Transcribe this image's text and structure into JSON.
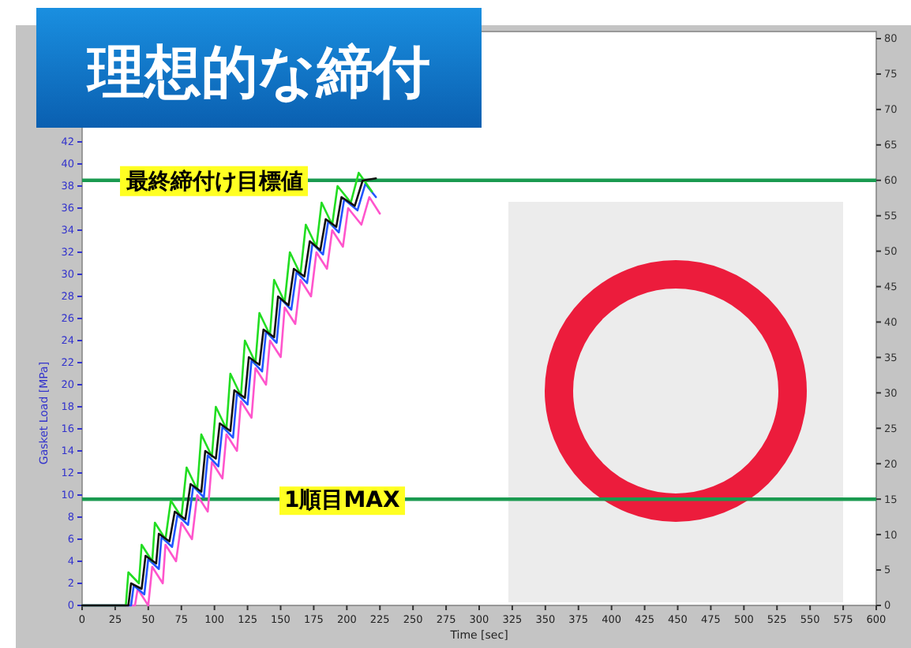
{
  "chart_data": {
    "type": "line",
    "title": "理想的な締付",
    "xlabel": "Time [sec]",
    "ylabel": "Gasket Load [MPa]",
    "xlim": [
      0,
      600
    ],
    "xticks": [
      0,
      25,
      50,
      75,
      100,
      125,
      150,
      175,
      200,
      225,
      250,
      275,
      300,
      325,
      350,
      375,
      400,
      425,
      450,
      475,
      500,
      525,
      550,
      575,
      600
    ],
    "ylim": [
      0,
      52
    ],
    "yticks": [
      0,
      2,
      4,
      6,
      8,
      10,
      12,
      14,
      16,
      18,
      20,
      22,
      24,
      26,
      28,
      30,
      32,
      34,
      36,
      38,
      40,
      42
    ],
    "y2lim": [
      0,
      81
    ],
    "y2ticks": [
      0,
      5,
      10,
      15,
      20,
      25,
      30,
      35,
      40,
      45,
      50,
      55,
      60,
      65,
      70,
      75,
      80
    ],
    "line_style": "solid",
    "ref_lines": [
      {
        "axis": "y2",
        "value": 60,
        "label": "最終締付け目標値",
        "color": "#1a9a50"
      },
      {
        "axis": "y2",
        "value": 15,
        "label": "1順目MAX",
        "color": "#1a9a50"
      }
    ],
    "series": [
      {
        "color": "#ff55cc",
        "x": [
          0,
          40,
          42,
          50,
          53,
          61,
          63,
          71,
          75,
          83,
          87,
          95,
          98,
          106,
          109,
          117,
          120,
          128,
          131,
          139,
          142,
          150,
          153,
          161,
          165,
          173,
          177,
          185,
          189,
          197,
          201,
          211,
          217,
          225
        ],
        "values": [
          0,
          0,
          1.5,
          0,
          3.5,
          2,
          5.5,
          4,
          7.5,
          6,
          10,
          8.5,
          13,
          11.5,
          15.5,
          14,
          18.5,
          17,
          21.5,
          20,
          24,
          22.5,
          27,
          25.5,
          29.5,
          28,
          32,
          30.5,
          34,
          32.5,
          36,
          34.5,
          37,
          35.5
        ]
      },
      {
        "color": "#2255ff",
        "x": [
          0,
          37,
          39,
          47,
          50,
          58,
          60,
          68,
          72,
          80,
          84,
          92,
          95,
          103,
          106,
          114,
          117,
          125,
          128,
          136,
          139,
          147,
          150,
          158,
          162,
          170,
          174,
          182,
          186,
          194,
          198,
          208,
          214,
          222
        ],
        "values": [
          0,
          0,
          1.8,
          1,
          4.2,
          3.3,
          6.2,
          5.3,
          8.2,
          7.3,
          10.8,
          9.8,
          13.6,
          12.6,
          16.2,
          15.2,
          19.2,
          18.2,
          22.2,
          21.2,
          24.8,
          23.8,
          27.8,
          26.8,
          30.2,
          29.2,
          32.8,
          31.8,
          34.8,
          33.8,
          36.8,
          35.8,
          38.2,
          37
        ]
      },
      {
        "color": "#22dd22",
        "x": [
          0,
          33,
          35,
          43,
          45,
          53,
          55,
          63,
          67,
          75,
          79,
          87,
          90,
          98,
          101,
          109,
          112,
          120,
          123,
          131,
          134,
          142,
          145,
          153,
          157,
          165,
          169,
          177,
          181,
          189,
          193,
          203,
          209,
          219
        ],
        "values": [
          0,
          0,
          3,
          2,
          5.5,
          4,
          7.5,
          6,
          9.5,
          8,
          12.5,
          10.5,
          15.5,
          13.5,
          18,
          16,
          21,
          19,
          24,
          22,
          26.5,
          24.5,
          29.5,
          27.5,
          32,
          30,
          34.5,
          32.5,
          36.5,
          34.5,
          38,
          36.5,
          39.2,
          37.5
        ]
      },
      {
        "color": "#111111",
        "x": [
          0,
          35,
          37,
          45,
          48,
          56,
          58,
          66,
          70,
          78,
          82,
          90,
          93,
          101,
          104,
          112,
          115,
          123,
          126,
          134,
          137,
          145,
          148,
          156,
          160,
          168,
          172,
          180,
          184,
          192,
          196,
          206,
          212,
          222
        ],
        "values": [
          0,
          0,
          2,
          1.5,
          4.5,
          3.8,
          6.5,
          5.8,
          8.5,
          7.8,
          11,
          10.3,
          14,
          13.3,
          16.5,
          15.8,
          19.5,
          18.8,
          22.5,
          21.8,
          25,
          24.3,
          28,
          27.2,
          30.5,
          29.8,
          33,
          32.2,
          35,
          34.3,
          37,
          36.2,
          38.5,
          38.7
        ]
      }
    ]
  }
}
